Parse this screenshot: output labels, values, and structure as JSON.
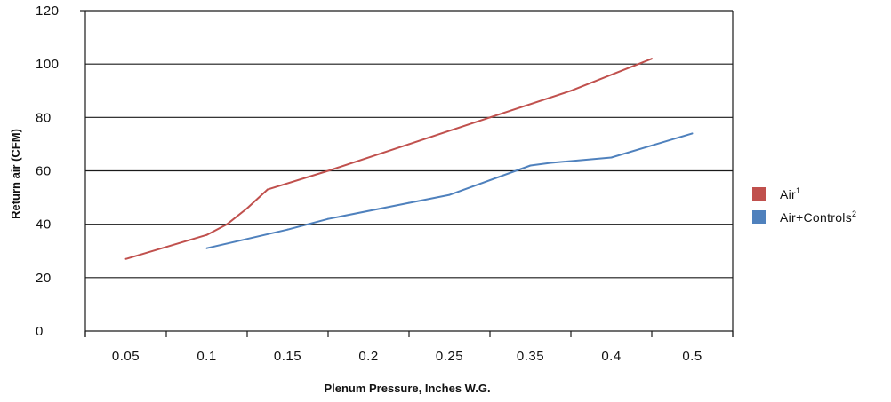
{
  "chart_data": {
    "type": "line",
    "title": "",
    "xlabel": "Plenum Pressure, Inches W.G.",
    "ylabel": "Return air (CFM)",
    "categories": [
      "0.05",
      "0.1",
      "0.15",
      "0.2",
      "0.25",
      "0.35",
      "0.4",
      "0.5"
    ],
    "ylim": [
      0,
      120
    ],
    "yticks": [
      0,
      20,
      40,
      60,
      80,
      100,
      120
    ],
    "grid": "horizontal",
    "legend_position": "right",
    "series": [
      {
        "name": "Air",
        "superscript": "1",
        "color": "#c0504d",
        "points": [
          {
            "x": 0.5,
            "y": 27
          },
          {
            "x": 1.5,
            "y": 36
          },
          {
            "x": 1.75,
            "y": 40
          },
          {
            "x": 2.0,
            "y": 46
          },
          {
            "x": 2.25,
            "y": 53
          },
          {
            "x": 3.0,
            "y": 60
          },
          {
            "x": 4.0,
            "y": 70
          },
          {
            "x": 5.0,
            "y": 80
          },
          {
            "x": 6.0,
            "y": 90
          },
          {
            "x": 7.0,
            "y": 102
          }
        ]
      },
      {
        "name": "Air+Controls",
        "superscript": "2",
        "color": "#4f81bd",
        "points": [
          {
            "x": 1.5,
            "y": 31
          },
          {
            "x": 2.5,
            "y": 38
          },
          {
            "x": 3.0,
            "y": 42
          },
          {
            "x": 4.0,
            "y": 48
          },
          {
            "x": 4.5,
            "y": 51
          },
          {
            "x": 5.5,
            "y": 62
          },
          {
            "x": 5.75,
            "y": 63
          },
          {
            "x": 6.5,
            "y": 65
          },
          {
            "x": 7.5,
            "y": 74
          }
        ]
      }
    ]
  }
}
